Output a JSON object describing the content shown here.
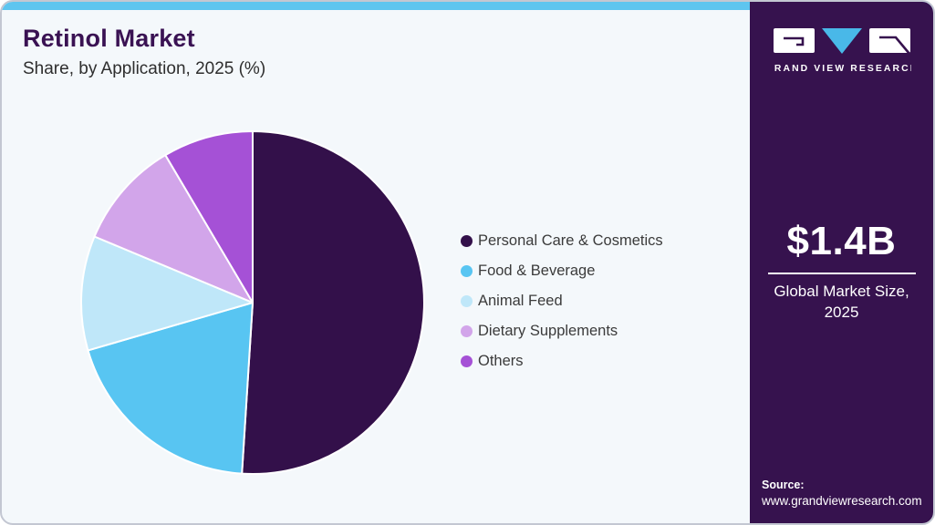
{
  "header": {
    "title": "Retinol Market",
    "subtitle": "Share, by Application, 2025 (%)"
  },
  "sidebar": {
    "logo_text": "GRAND VIEW RESEARCH",
    "market_size_value": "$1.4B",
    "market_size_label_line1": "Global Market Size,",
    "market_size_label_line2": "2025",
    "source_label": "Source:",
    "source_url": "www.grandviewresearch.com"
  },
  "colors": {
    "topbar": "#5ec5ef",
    "card_background": "#f4f8fb",
    "card_border": "#c3c7d2",
    "sidebar_background": "#36124e",
    "title_text": "#3a1253",
    "subtitle_text": "#2e2e2e",
    "legend_text": "#3b3b3b",
    "sidebar_text": "#ffffff",
    "logo_triangle": "#49b8e8"
  },
  "chart_data": {
    "type": "pie",
    "title": "Retinol Market Share, by Application, 2025 (%)",
    "unit": "%",
    "labels": [
      "Personal Care & Cosmetics",
      "Food & Beverage",
      "Animal Feed",
      "Dietary Supplements",
      "Others"
    ],
    "values": [
      51.0,
      19.5,
      10.8,
      10.2,
      8.5
    ],
    "colors": [
      "#33104a",
      "#58c5f2",
      "#bfe7f9",
      "#d2a5ea",
      "#a551d6"
    ],
    "start_angle_deg": 0,
    "direction": "clockwise",
    "legend_position": "right",
    "slice_border_color": "#ffffff"
  }
}
